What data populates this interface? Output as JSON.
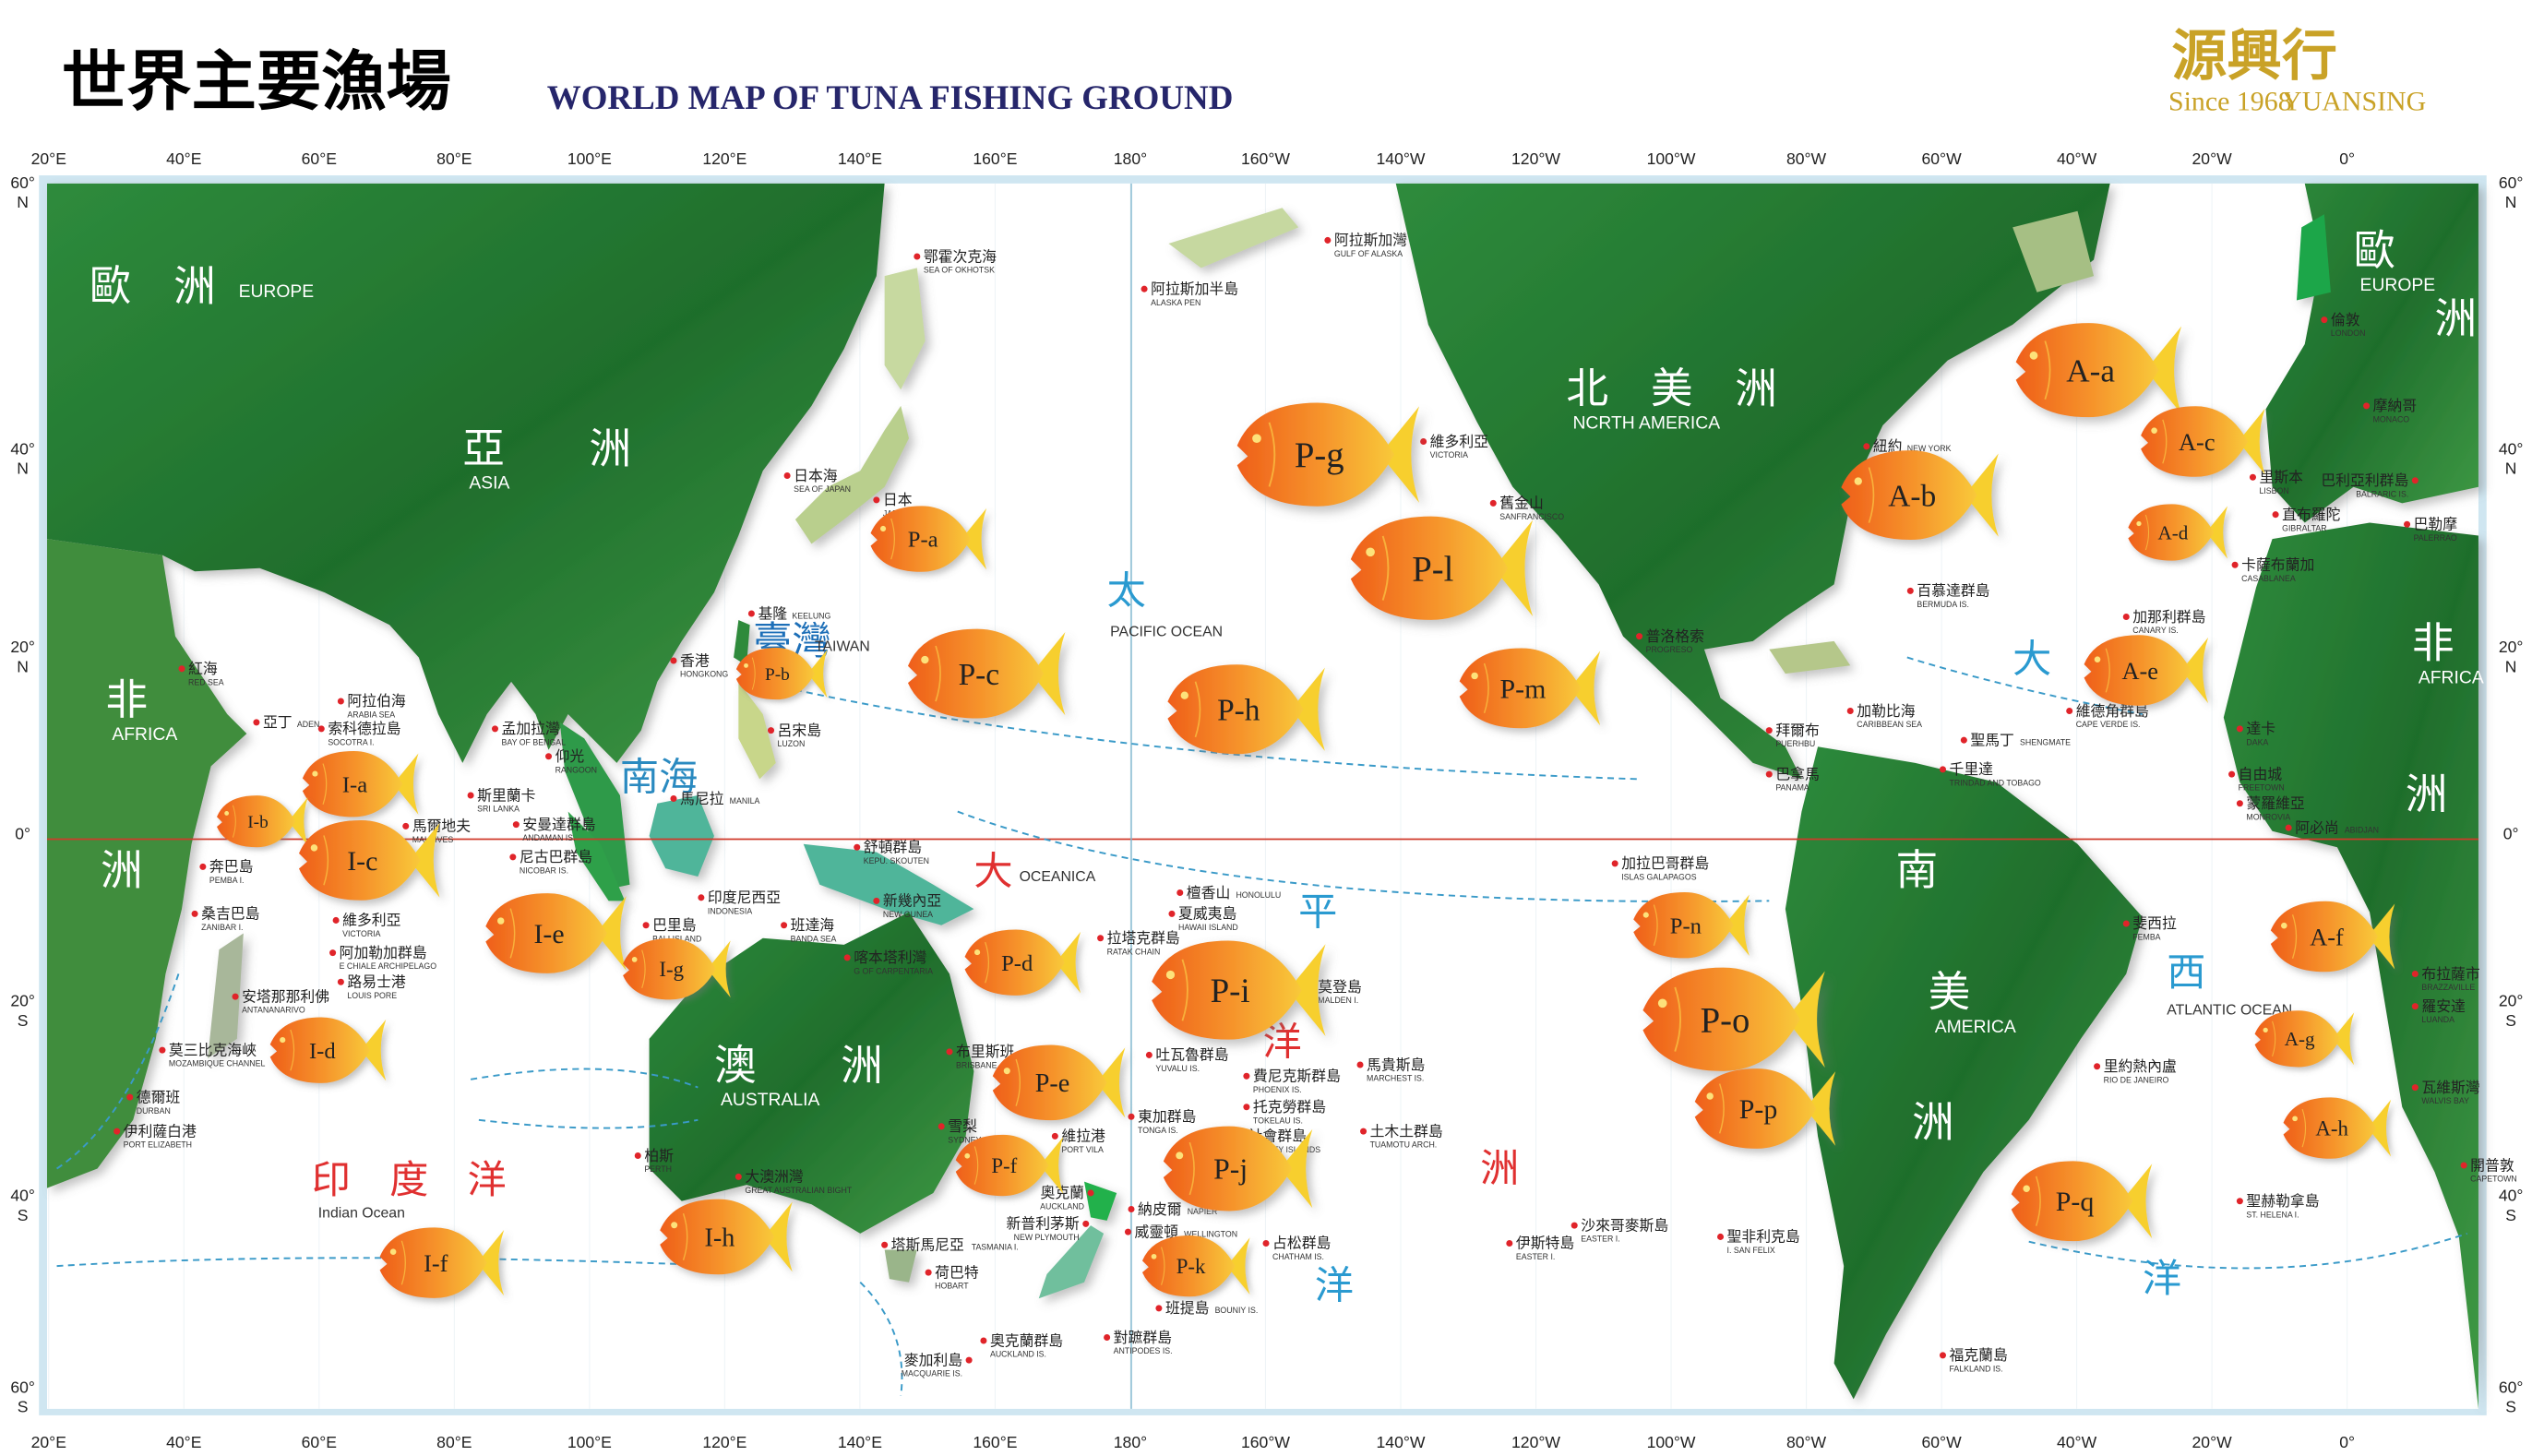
{
  "header": {
    "title_zh": "世界主要漁場",
    "title_en": "WORLD MAP OF TUNA FISHING GROUND"
  },
  "logo": {
    "name_zh": "源興行",
    "since": "Since 1968",
    "name_en": "YUANSING"
  },
  "colors": {
    "ocean": "#ffffff",
    "frame": "#cfe6f1",
    "land": "#2f8a3a",
    "fish_head": "#f06a1e",
    "fish_tail": "#f7cf2e",
    "equator": "#d03a2a",
    "current": "#3a9ac8"
  },
  "longitude_labels": [
    "20°E",
    "40°E",
    "60°E",
    "80°E",
    "100°E",
    "120°E",
    "140°E",
    "160°E",
    "180°",
    "160°W",
    "140°W",
    "120°W",
    "100°W",
    "80°W",
    "60°W",
    "40°W",
    "20°W",
    "0°"
  ],
  "latitude_labels": [
    {
      "deg": "60°",
      "hemi": "N"
    },
    {
      "deg": "40°",
      "hemi": "N"
    },
    {
      "deg": "20°",
      "hemi": "N"
    },
    {
      "deg": "0°",
      "hemi": ""
    },
    {
      "deg": "20°",
      "hemi": "S"
    },
    {
      "deg": "40°",
      "hemi": "S"
    },
    {
      "deg": "60°",
      "hemi": "S"
    }
  ],
  "regions": [
    {
      "zh": "亞　　洲",
      "en": "ASIA"
    },
    {
      "zh": "歐　洲",
      "en": "EUROPE"
    },
    {
      "zh": "非",
      "en": "AFRICA"
    },
    {
      "zh": "洲",
      "en": ""
    },
    {
      "zh": "澳　　洲",
      "en": "AUSTRALIA"
    },
    {
      "zh": "北　美　洲",
      "en": "NCRTH AMERICA"
    },
    {
      "zh": "南",
      "en": ""
    },
    {
      "zh": "美",
      "en": "AMERICA"
    },
    {
      "zh": "洲",
      "en": ""
    },
    {
      "zh": "歐",
      "en": "EUROPE"
    },
    {
      "zh": "洲",
      "en": ""
    },
    {
      "zh": "非",
      "en": "AFRICA"
    },
    {
      "zh": "洲",
      "en": ""
    }
  ],
  "oceans": [
    {
      "zh": "印　度　洋",
      "en": "Indian Ocean"
    },
    {
      "zh": "南海",
      "en": ""
    },
    {
      "zh": "臺灣",
      "en": "TAIWAN"
    },
    {
      "zh": "太",
      "en": "PACIFIC OCEAN"
    },
    {
      "zh": "大",
      "en": "OCEANICA"
    },
    {
      "zh": "平",
      "en": ""
    },
    {
      "zh": "洋",
      "en": ""
    },
    {
      "zh": "洲",
      "en": ""
    },
    {
      "zh": "洋",
      "en": ""
    },
    {
      "zh": "大",
      "en": ""
    },
    {
      "zh": "西",
      "en": "ATLANTIC OCEAN"
    },
    {
      "zh": "洋",
      "en": ""
    }
  ],
  "places": [
    {
      "zh": "紅海",
      "en": "RED SEA"
    },
    {
      "zh": "亞丁",
      "en": "ADEN"
    },
    {
      "zh": "阿拉伯海",
      "en": "ARABIA SEA"
    },
    {
      "zh": "索科德拉島",
      "en": "SOCOTRA I."
    },
    {
      "zh": "孟加拉灣",
      "en": "BAY OF BENGAL"
    },
    {
      "zh": "仰光",
      "en": "RANGOON"
    },
    {
      "zh": "斯里蘭卡",
      "en": "SRI LANKA"
    },
    {
      "zh": "馬爾地夫",
      "en": "MALDIVES"
    },
    {
      "zh": "安曼達群島",
      "en": "ANDAMAN IS."
    },
    {
      "zh": "尼古巴群島",
      "en": "NICOBAR IS."
    },
    {
      "zh": "奔巴島",
      "en": "PEMBA I."
    },
    {
      "zh": "桑吉巴島",
      "en": "ZANIBAR I."
    },
    {
      "zh": "維多利亞",
      "en": "VICTORIA"
    },
    {
      "zh": "阿加勒加群島",
      "en": "E CHIALE ARCHIPELAGO"
    },
    {
      "zh": "路易士港",
      "en": "LOUIS PORE"
    },
    {
      "zh": "安塔那那利佛",
      "en": "ANTANANARIVO"
    },
    {
      "zh": "莫三比克海峽",
      "en": "MOZAMBIQUE CHANNEL"
    },
    {
      "zh": "德爾班",
      "en": "DURBAN"
    },
    {
      "zh": "伊利薩白港",
      "en": "PORT ELIZABETH"
    },
    {
      "zh": "香港",
      "en": "HONGKONG"
    },
    {
      "zh": "基隆",
      "en": "KEELUNG"
    },
    {
      "zh": "呂宋島",
      "en": "LUZON"
    },
    {
      "zh": "馬尼拉",
      "en": "MANILA"
    },
    {
      "zh": "印度尼西亞",
      "en": "INDONESIA"
    },
    {
      "zh": "巴里島",
      "en": "BALI ISLAND"
    },
    {
      "zh": "班達海",
      "en": "BANDA SEA"
    },
    {
      "zh": "喀本塔利灣",
      "en": "G OF CARPENTARIA"
    },
    {
      "zh": "舒頓群島",
      "en": "KEPU. SKOUTEN"
    },
    {
      "zh": "新幾內亞",
      "en": "NEW GUNEA"
    },
    {
      "zh": "日本",
      "en": "JAPAN"
    },
    {
      "zh": "日本海",
      "en": "SEA OF JAPAN"
    },
    {
      "zh": "鄂霍次克海",
      "en": "SEA OF OKHOTSK"
    },
    {
      "zh": "阿拉斯加半島",
      "en": "ALASKA PEN"
    },
    {
      "zh": "阿拉斯加灣",
      "en": "GULF OF ALASKA"
    },
    {
      "zh": "維多利亞",
      "en": "VICTORIA"
    },
    {
      "zh": "舊金山",
      "en": "SANFRANCISCO"
    },
    {
      "zh": "檀香山",
      "en": "HONOLULU"
    },
    {
      "zh": "夏威夷島",
      "en": "HAWAII ISLAND"
    },
    {
      "zh": "拉塔克群島",
      "en": "RATAK CHAIN"
    },
    {
      "zh": "莫登島",
      "en": "MALDEN I."
    },
    {
      "zh": "布里斯班",
      "en": "BRISBANE"
    },
    {
      "zh": "吐瓦魯群島",
      "en": "YUVALU IS."
    },
    {
      "zh": "費尼克斯群島",
      "en": "PHOENIX IS."
    },
    {
      "zh": "馬貴斯島",
      "en": "MARCHEST IS."
    },
    {
      "zh": "托克勞群島",
      "en": "TOKELAU IS."
    },
    {
      "zh": "東加群島",
      "en": "TONGA IS."
    },
    {
      "zh": "社會群島",
      "en": "SOCIETY ISLANDS"
    },
    {
      "zh": "土木土群島",
      "en": "TUAMOTU ARCH."
    },
    {
      "zh": "雪梨",
      "en": "SYDNEY"
    },
    {
      "zh": "維拉港",
      "en": "PORT VILA"
    },
    {
      "zh": "奧克蘭",
      "en": "AUCKLAND"
    },
    {
      "zh": "新普利茅斯",
      "en": "NEW PLYMOUTH"
    },
    {
      "zh": "納皮爾",
      "en": "NAPIER"
    },
    {
      "zh": "威靈頓",
      "en": "WELLINGTON"
    },
    {
      "zh": "塔斯馬尼亞",
      "en": "TASMANIA I."
    },
    {
      "zh": "荷巴特",
      "en": "HOBART"
    },
    {
      "zh": "占松群島",
      "en": "CHATHAM IS."
    },
    {
      "zh": "班提島",
      "en": "BOUNIY IS."
    },
    {
      "zh": "對蹠群島",
      "en": "ANTIPODES IS."
    },
    {
      "zh": "麥加利島",
      "en": "MACQUARIE IS."
    },
    {
      "zh": "奧克蘭群島",
      "en": "AUCKLAND IS."
    },
    {
      "zh": "柏斯",
      "en": "PERTH"
    },
    {
      "zh": "大澳洲灣",
      "en": "GREAT AUSTRALIAN BIGHT"
    },
    {
      "zh": "加拉巴哥群島",
      "en": "ISLAS GALAPAGOS"
    },
    {
      "zh": "伊斯特島",
      "en": "EASTER I."
    },
    {
      "zh": "沙來哥麥斯島",
      "en": "EASTER I."
    },
    {
      "zh": "聖非利克島",
      "en": "I. SAN FELIX"
    },
    {
      "zh": "普洛格索",
      "en": "PROGRESO"
    },
    {
      "zh": "拜爾布",
      "en": "PUERHBU"
    },
    {
      "zh": "巴拿馬",
      "en": "PANAMA"
    },
    {
      "zh": "加勒比海",
      "en": "CARIBBEAN SEA"
    },
    {
      "zh": "聖馬丁",
      "en": "SHENGMATE"
    },
    {
      "zh": "千里達",
      "en": "TRINDAD AND TOBAGO"
    },
    {
      "zh": "紐約",
      "en": "NEW YORK"
    },
    {
      "zh": "百慕達群島",
      "en": "BERMUDA IS."
    },
    {
      "zh": "維德角群島",
      "en": "CAPE VERDE IS."
    },
    {
      "zh": "加那利群島",
      "en": "CANARY IS."
    },
    {
      "zh": "卡薩布蘭加",
      "en": "CASABLANEA"
    },
    {
      "zh": "直布羅陀",
      "en": "GIBRALTAR"
    },
    {
      "zh": "里斯本",
      "en": "LISBON"
    },
    {
      "zh": "倫敦",
      "en": "LONDON"
    },
    {
      "zh": "摩納哥",
      "en": "MONACO"
    },
    {
      "zh": "巴利亞利群島",
      "en": "BALRARIC IS."
    },
    {
      "zh": "巴勒摩",
      "en": "PALERRAO"
    },
    {
      "zh": "達卡",
      "en": "DAKA"
    },
    {
      "zh": "自由城",
      "en": "FREETOWN"
    },
    {
      "zh": "蒙羅維亞",
      "en": "MONROVIA"
    },
    {
      "zh": "阿必尚",
      "en": "ABIDJAN"
    },
    {
      "zh": "斐西拉",
      "en": "FEMBA"
    },
    {
      "zh": "里約熱內盧",
      "en": "RIO DE JANEIRO"
    },
    {
      "zh": "布拉薩市",
      "en": "BRAZZAVILLE"
    },
    {
      "zh": "羅安達",
      "en": "LUANDA"
    },
    {
      "zh": "瓦維斯灣",
      "en": "WALVIS BAY"
    },
    {
      "zh": "開普敦",
      "en": "CAPETOWN"
    },
    {
      "zh": "聖赫勒拿島",
      "en": "ST. HELENA I."
    },
    {
      "zh": "福克蘭島",
      "en": "FALKLAND IS."
    }
  ],
  "fishing_grounds": [
    "P-a",
    "P-b",
    "P-c",
    "P-d",
    "P-e",
    "P-f",
    "P-g",
    "P-h",
    "P-i",
    "P-j",
    "P-k",
    "P-l",
    "P-m",
    "P-n",
    "P-o",
    "P-p",
    "P-q",
    "A-a",
    "A-b",
    "A-c",
    "A-d",
    "A-e",
    "A-f",
    "A-g",
    "A-h",
    "I-a",
    "I-b",
    "I-c",
    "I-d",
    "I-e",
    "I-f",
    "I-g",
    "I-h"
  ]
}
